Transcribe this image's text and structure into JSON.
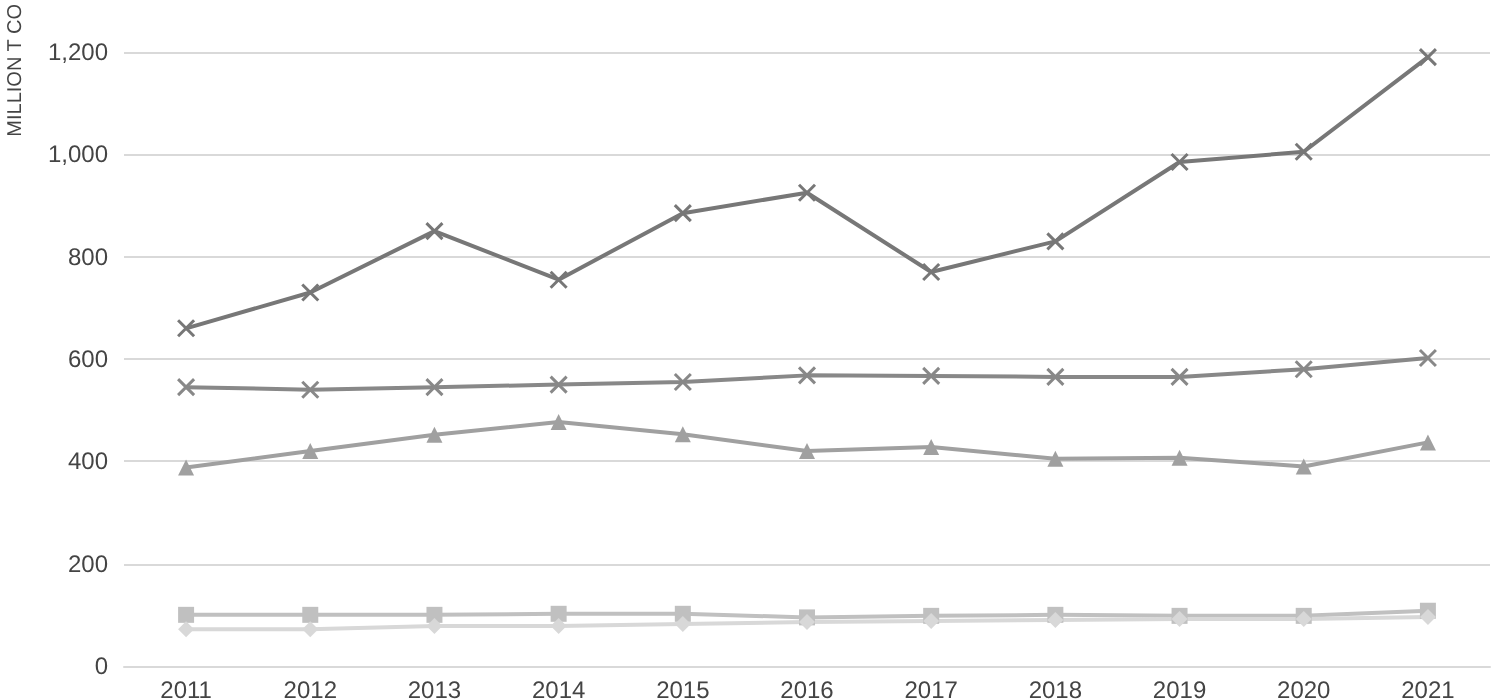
{
  "chart_data": {
    "type": "line",
    "ylabel": "MILLION T CO",
    "categories": [
      "2011",
      "2012",
      "2013",
      "2014",
      "2015",
      "2016",
      "2017",
      "2018",
      "2019",
      "2020",
      "2021"
    ],
    "series": [
      {
        "color": "#777777",
        "marker": "cross",
        "values": [
          660,
          730,
          850,
          755,
          885,
          925,
          770,
          830,
          985,
          1005,
          1190
        ]
      },
      {
        "color": "#888888",
        "marker": "cross",
        "values": [
          545,
          540,
          545,
          550,
          555,
          568,
          567,
          565,
          565,
          580,
          602
        ]
      },
      {
        "color": "#a0a0a0",
        "marker": "triangle",
        "values": [
          388,
          420,
          452,
          477,
          453,
          420,
          428,
          405,
          407,
          390,
          437
        ]
      },
      {
        "color": "#c0c0c0",
        "marker": "square",
        "values": [
          100,
          100,
          100,
          102,
          102,
          95,
          98,
          100,
          98,
          98,
          108
        ]
      },
      {
        "color": "#d8d8d8",
        "marker": "diamond",
        "values": [
          72,
          72,
          78,
          78,
          82,
          86,
          88,
          90,
          92,
          92,
          96
        ]
      }
    ],
    "ylim": [
      0,
      1200
    ],
    "yticks": [
      0,
      200,
      400,
      600,
      800,
      {
        "value": 1000,
        "label": "1,000"
      },
      {
        "value": 1200,
        "label": "1,200"
      }
    ],
    "grid": "y"
  }
}
